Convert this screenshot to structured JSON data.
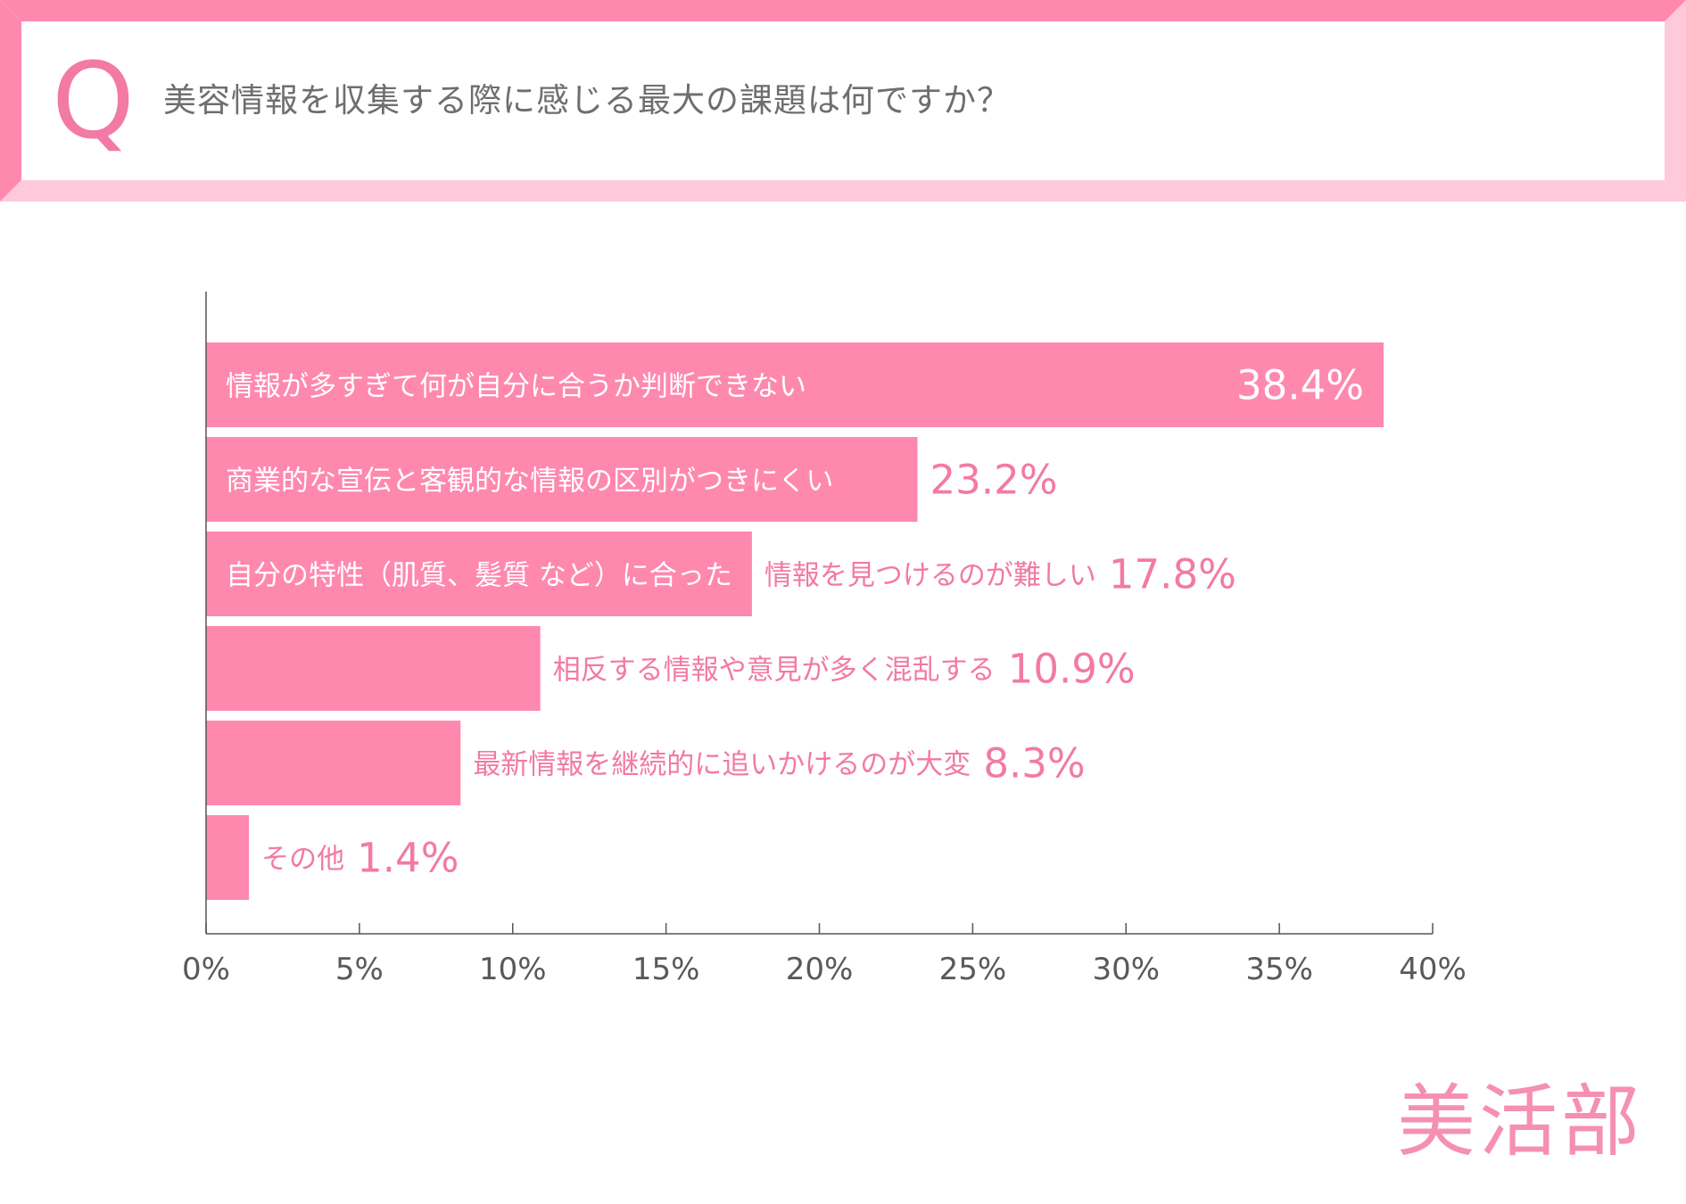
{
  "header": {
    "q_letter": "Q",
    "question": "美容情報を収集する際に感じる最大の課題は何ですか？"
  },
  "brand": "美活部",
  "colors": {
    "bar": "#ff88ae",
    "accent": "#f27aa4",
    "frame_dark": "#ff88ae",
    "frame_light": "#ffc9dc",
    "axis": "#555555"
  },
  "chart_data": {
    "type": "bar",
    "orientation": "horizontal",
    "categories": [
      "情報が多すぎて何が自分に合うか判断できない",
      "商業的な宣伝と客観的な情報の区別がつきにくい",
      "自分の特性（肌質、髪質 など）に合った情報を見つけるのが難しい",
      "相反する情報や意見が多く混乱する",
      "最新情報を継続的に追いかけるのが大変",
      "その他"
    ],
    "values": [
      38.4,
      23.2,
      17.8,
      10.9,
      8.3,
      1.4
    ],
    "value_labels": [
      "38.4%",
      "23.2%",
      "17.8%",
      "10.9%",
      "8.3%",
      "1.4%"
    ],
    "label_parts": [
      [
        "情報が多すぎて何が自分に合うか判断できない",
        ""
      ],
      [
        "商業的な宣伝と客観的な情報の区別がつきにくい",
        ""
      ],
      [
        "自分の特性（肌質、髪質 など）に合った",
        "情報を見つけるのが難しい"
      ],
      [
        "",
        "相反する情報や意見が多く混乱する"
      ],
      [
        "",
        "最新情報を継続的に追いかけるのが大変"
      ],
      [
        "",
        "その他"
      ]
    ],
    "xlim": [
      0,
      40
    ],
    "xticks": [
      0,
      5,
      10,
      15,
      20,
      25,
      30,
      35,
      40
    ],
    "xtick_labels": [
      "0%",
      "5%",
      "10%",
      "15%",
      "20%",
      "25%",
      "30%",
      "35%",
      "40%"
    ],
    "grid": false,
    "legend": "none"
  }
}
